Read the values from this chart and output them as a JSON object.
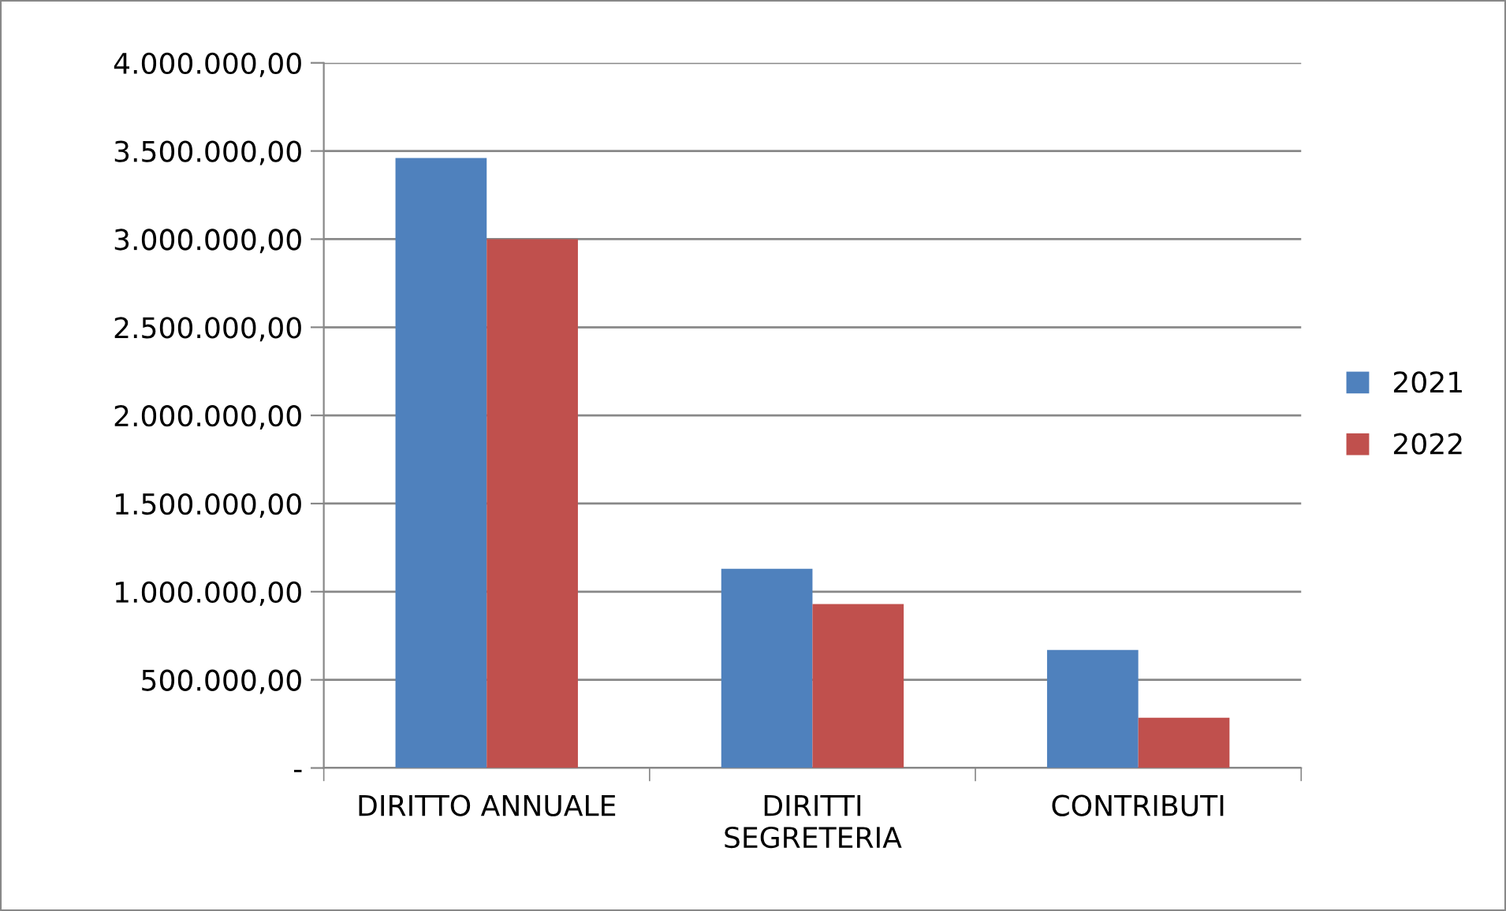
{
  "chart_data": {
    "type": "bar",
    "categories": [
      "DIRITTO ANNUALE",
      "DIRITTI\nSEGRETERIA",
      "CONTRIBUTI"
    ],
    "series": [
      {
        "name": "2021",
        "color": "#4f81bd",
        "values": [
          3460000,
          1130000,
          670000
        ]
      },
      {
        "name": "2022",
        "color": "#c0504d",
        "values": [
          3000000,
          930000,
          285000
        ]
      }
    ],
    "ylim": [
      0,
      4000000
    ],
    "yticks": [
      {
        "value": 0,
        "label": "-"
      },
      {
        "value": 500000,
        "label": "500.000,00"
      },
      {
        "value": 1000000,
        "label": "1.000.000,00"
      },
      {
        "value": 1500000,
        "label": "1.500.000,00"
      },
      {
        "value": 2000000,
        "label": "2.000.000,00"
      },
      {
        "value": 2500000,
        "label": "2.500.000,00"
      },
      {
        "value": 3000000,
        "label": "3.000.000,00"
      },
      {
        "value": 3500000,
        "label": "3.500.000,00"
      },
      {
        "value": 4000000,
        "label": "4.000.000,00"
      }
    ],
    "grid": "y",
    "legend": "right"
  }
}
